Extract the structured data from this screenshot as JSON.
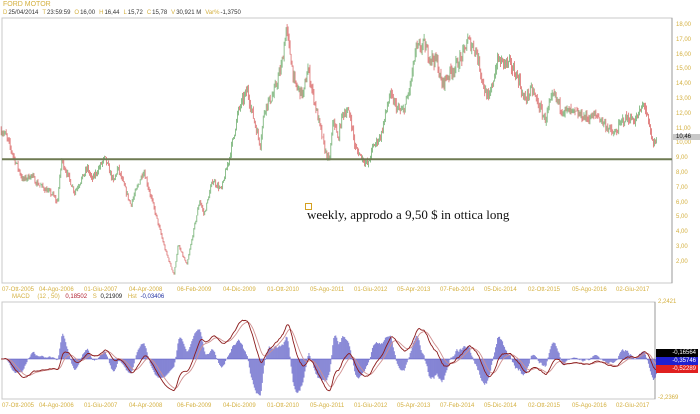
{
  "header": {
    "title": "FORD MOTOR",
    "info": [
      {
        "k": "D",
        "v": "25/04/2014"
      },
      {
        "k": "T",
        "v": "23:59:59"
      },
      {
        "k": "O",
        "v": "16,00"
      },
      {
        "k": "H",
        "v": "16,44"
      },
      {
        "k": "L",
        "v": "15,72"
      },
      {
        "k": "C",
        "v": "15,78"
      },
      {
        "k": "V",
        "v": "30,921 M"
      },
      {
        "k": "Var%",
        "v": "-1,3750"
      }
    ]
  },
  "annotation": {
    "text": "weekly, approdo a 9,50 $ in ottica long"
  },
  "colors": {
    "up": "#4a9a4a",
    "down": "#d04040",
    "support": "#6e7a52",
    "macd": "#8b1a1a",
    "signal": "#d09090",
    "hist": "#6060c8",
    "label": "#d4b040"
  },
  "macd_panel": {
    "name": "MACD",
    "params": "(12 , 50)",
    "macd_value": "0,18502",
    "signal_key": "S",
    "signal_value": "0,21909",
    "hist_key": "Hst",
    "hist_value": "-0,03406",
    "axis_top": "2,2421",
    "axis_bottom": "-2,2369",
    "tags": [
      {
        "text": "-0,16564",
        "color": "#000000"
      },
      {
        "text": "-0,35746",
        "color": "#2020d0"
      },
      {
        "text": "-0,52289",
        "color": "#e02020"
      }
    ]
  },
  "chart_data": [
    {
      "type": "candlestick",
      "title": "FORD MOTOR",
      "ylim": [
        2,
        18
      ],
      "y_ticks": [
        "18,00",
        "17,00",
        "16,00",
        "15,00",
        "14,00",
        "13,00",
        "12,00",
        "11,00",
        "10,00",
        "9,00",
        "8,00",
        "7,00",
        "6,00",
        "5,00",
        "4,00",
        "3,00",
        "2,00"
      ],
      "x_ticks": [
        "07-Ott-2005",
        "04-Ago-2006",
        "01-Giu-2007",
        "04-Apr-2008",
        "06-Feb-2009",
        "04-Dic-2009",
        "01-Ott-2010",
        "05-Ago-2011",
        "01-Giu-2012",
        "05-Apr-2013",
        "07-Feb-2014",
        "05-Dic-2014",
        "02-Ott-2015",
        "05-Ago-2016",
        "02-Giu-2017"
      ],
      "last_price": "10,46",
      "support_level": 9.0,
      "grid": false,
      "frequency": "weekly",
      "close_keypoints": [
        [
          "2005-07",
          10.97
        ],
        [
          "2005-08",
          10.64
        ],
        [
          "2005-10",
          9.08
        ],
        [
          "2005-12",
          7.59
        ],
        [
          "2006-02",
          7.93
        ],
        [
          "2006-03",
          7.46
        ],
        [
          "2006-07",
          6.58
        ],
        [
          "2006-08",
          6.04
        ],
        [
          "2006-09",
          8.95
        ],
        [
          "2006-12",
          6.78
        ],
        [
          "2007-03",
          8.41
        ],
        [
          "2007-04",
          7.59
        ],
        [
          "2007-07",
          9.08
        ],
        [
          "2007-09",
          7.46
        ],
        [
          "2007-10",
          8.41
        ],
        [
          "2008-01",
          5.91
        ],
        [
          "2008-04",
          8.27
        ],
        [
          "2008-07",
          5.03
        ],
        [
          "2008-09",
          2.86
        ],
        [
          "2008-11",
          1.18
        ],
        [
          "2008-12",
          3.2
        ],
        [
          "2009-02",
          1.85
        ],
        [
          "2009-05",
          6.24
        ],
        [
          "2009-06",
          5.23
        ],
        [
          "2009-08",
          7.59
        ],
        [
          "2009-10",
          6.92
        ],
        [
          "2009-12",
          9.28
        ],
        [
          "2010-02",
          12.32
        ],
        [
          "2010-04",
          13.68
        ],
        [
          "2010-05",
          12.32
        ],
        [
          "2010-07",
          9.96
        ],
        [
          "2010-08",
          12.46
        ],
        [
          "2010-10",
          13.34
        ],
        [
          "2010-12",
          15.36
        ],
        [
          "2011-01",
          17.86
        ],
        [
          "2011-02",
          16.04
        ],
        [
          "2011-03",
          14.01
        ],
        [
          "2011-05",
          13.34
        ],
        [
          "2011-06",
          15.16
        ],
        [
          "2011-08",
          12.32
        ],
        [
          "2011-10",
          9.62
        ],
        [
          "2011-11",
          8.81
        ],
        [
          "2011-12",
          11.78
        ],
        [
          "2012-01",
          10.3
        ],
        [
          "2012-02",
          11.99
        ],
        [
          "2012-03",
          12.32
        ],
        [
          "2012-04",
          11.78
        ],
        [
          "2012-05",
          9.76
        ],
        [
          "2012-07",
          8.95
        ],
        [
          "2012-08",
          8.61
        ],
        [
          "2012-09",
          9.76
        ],
        [
          "2012-11",
          10.64
        ],
        [
          "2013-01",
          13.34
        ],
        [
          "2013-03",
          12.32
        ],
        [
          "2013-04",
          12.19
        ],
        [
          "2013-05",
          13.0
        ],
        [
          "2013-06",
          14.35
        ],
        [
          "2013-07",
          16.38
        ],
        [
          "2013-09",
          16.72
        ],
        [
          "2013-10",
          16.04
        ],
        [
          "2013-12",
          15.57
        ],
        [
          "2014-01",
          14.01
        ],
        [
          "2014-03",
          14.89
        ],
        [
          "2014-04",
          15.16
        ],
        [
          "2014-06",
          16.04
        ],
        [
          "2014-07",
          17.05
        ],
        [
          "2014-09",
          16.38
        ],
        [
          "2014-11",
          13.68
        ],
        [
          "2014-12",
          13.0
        ],
        [
          "2015-01",
          14.35
        ],
        [
          "2015-02",
          15.7
        ],
        [
          "2015-05",
          15.36
        ],
        [
          "2015-07",
          14.35
        ],
        [
          "2015-08",
          13.0
        ],
        [
          "2015-10",
          13.68
        ],
        [
          "2016-01",
          11.65
        ],
        [
          "2016-02",
          12.66
        ],
        [
          "2016-03",
          13.34
        ],
        [
          "2016-05",
          12.32
        ],
        [
          "2016-07",
          12.19
        ],
        [
          "2016-11",
          11.78
        ],
        [
          "2017-01",
          11.99
        ],
        [
          "2017-03",
          11.31
        ],
        [
          "2017-05",
          10.64
        ],
        [
          "2017-07",
          11.65
        ],
        [
          "2017-08",
          11.78
        ],
        [
          "2017-10",
          11.65
        ],
        [
          "2017-12",
          12.8
        ],
        [
          "2018-01",
          11.31
        ],
        [
          "2018-02",
          9.96
        ],
        [
          "2018-03",
          10.46
        ]
      ]
    },
    {
      "type": "line",
      "title": "MACD",
      "ylim": [
        -2.2369,
        2.2421
      ],
      "series": [
        {
          "name": "MACD"
        },
        {
          "name": "S"
        },
        {
          "name": "Hst"
        }
      ]
    }
  ]
}
